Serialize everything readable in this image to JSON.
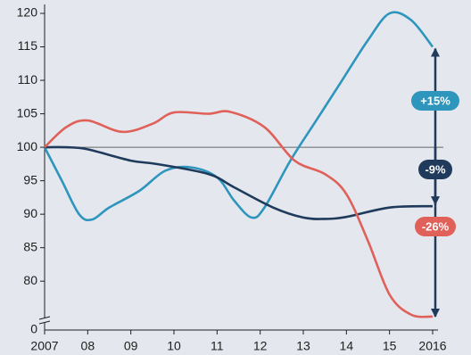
{
  "chart_data": {
    "type": "line",
    "xlim": [
      2007,
      2016
    ],
    "xticks": [
      2007,
      {
        "value": 2008,
        "label": "08"
      },
      {
        "value": 2009,
        "label": "09"
      },
      {
        "value": 2010,
        "label": "10"
      },
      {
        "value": 2011,
        "label": "11"
      },
      {
        "value": 2012,
        "label": "12"
      },
      {
        "value": 2013,
        "label": "13"
      },
      {
        "value": 2014,
        "label": "14"
      },
      {
        "value": 2015,
        "label": "15"
      },
      2016
    ],
    "ylim": [
      72.7,
      120
    ],
    "yticks": [
      80,
      85,
      90,
      95,
      100,
      105,
      110,
      115,
      120
    ],
    "y_axis_origin_label": "0",
    "reference_line": 100,
    "series": [
      {
        "color": "#2e95bd",
        "x": [
          2007,
          2007.4,
          2007.8,
          2008.1,
          2008.5,
          2009.2,
          2009.8,
          2010.4,
          2011,
          2011.4,
          2011.8,
          2012.1,
          2012.7,
          2013.3,
          2013.9,
          2014.5,
          2015,
          2015.5,
          2016
        ],
        "values": [
          100,
          95,
          90,
          89.2,
          91,
          93.5,
          96.5,
          97,
          95.5,
          92,
          89.5,
          91,
          98,
          104,
          110,
          116,
          120,
          119,
          115
        ]
      },
      {
        "color": "#1f3a5a",
        "x": [
          2007,
          2007.5,
          2008,
          2009,
          2009.6,
          2010.8,
          2011.4,
          2012.3,
          2013,
          2013.5,
          2014,
          2015,
          2016
        ],
        "values": [
          100,
          100,
          99.7,
          98,
          97.5,
          96,
          94,
          91,
          89.5,
          89.3,
          89.6,
          91,
          91.2
        ]
      },
      {
        "color": "#e0605a",
        "x": [
          2007,
          2007.5,
          2008,
          2008.8,
          2009.5,
          2010,
          2010.8,
          2011.3,
          2012.1,
          2012.8,
          2013.5,
          2014,
          2014.5,
          2015,
          2015.5,
          2016
        ],
        "values": [
          100,
          103,
          104,
          102.3,
          103.5,
          105.2,
          105,
          105.3,
          103,
          98,
          96,
          93,
          86,
          78,
          75,
          74.7
        ]
      }
    ],
    "annotations": [
      {
        "text": "+15%",
        "color": "#2e95bd"
      },
      {
        "text": "-9%",
        "color": "#1f3a5a"
      },
      {
        "text": "-26%",
        "color": "#e0605a"
      }
    ]
  }
}
